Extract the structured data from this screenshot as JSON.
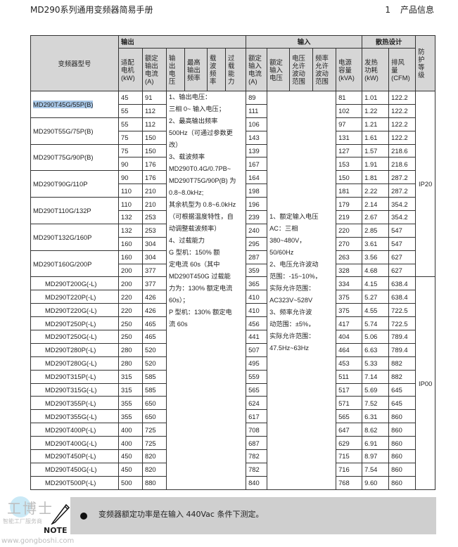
{
  "header": {
    "title": "MD290系列通用变频器简易手册",
    "section_no": "1",
    "section_title": "产品信息"
  },
  "table": {
    "col_model": "变频器型号",
    "group_output": "输出",
    "group_input": "输入",
    "group_cooling": "散热设计",
    "col_protection": [
      "防",
      "护",
      "等",
      "级"
    ],
    "cols": {
      "motor_kw": [
        "适配",
        "电机",
        "(kW)"
      ],
      "out_current": [
        "额定",
        "输出",
        "电流",
        "(A)"
      ],
      "out_voltage": [
        "输",
        "出",
        "电",
        "压"
      ],
      "max_freq": [
        "最高",
        "输出",
        "频率"
      ],
      "carrier": [
        "载",
        "波",
        "频",
        "率"
      ],
      "overload": [
        "过",
        "载",
        "能",
        "力"
      ],
      "in_current": [
        "额定",
        "输入",
        "电流",
        "(A)"
      ],
      "in_voltage": [
        "额定",
        "输入",
        "电压"
      ],
      "volt_range": [
        "电压",
        "允许",
        "波动",
        "范围"
      ],
      "freq_range": [
        "频率",
        "允许",
        "波动",
        "范围"
      ],
      "kva": [
        "电源",
        "容量",
        "(kVA)"
      ],
      "heat": [
        "发热",
        "功耗",
        "(kW)"
      ],
      "airflow": [
        "排风",
        "量",
        "(CFM)"
      ]
    },
    "output_notes": [
      "1、输出电压：",
      "三相 0~ 输入电压；",
      "2、最高输出频率",
      "500Hz（可通过参数更",
      "改）",
      "3、载波频率",
      "MD290T0.4G/0.7PB~",
      "MD290T75G/90P(B) 为",
      "0.8~8.0kHz;",
      "其余机型为 0.8~6.0kHz",
      "（可根据温度特性，自",
      "动调整载波频率）",
      "4、过载能力",
      "G 型机：150% 额",
      "定电流 60s（其中",
      "MD290T450G 过载能",
      "力为：130% 额定电流",
      "60s）；",
      "P 型机：130% 额定电",
      "流 60s"
    ],
    "input_notes": [
      "1、额定输入电压",
      "AC：三相",
      "380~480V，",
      "50/60Hz",
      "2、电压允许波动",
      "范围：-15~10%，",
      "实际允许范围：",
      "AC323V~528V",
      "3、频率允许波",
      "动范围：±5%，",
      "实际允许范围：",
      "47.5Hz~63Hz"
    ],
    "protection": [
      "IP20",
      "IP00"
    ],
    "dual_models": [
      {
        "model": "MD290T45G/55P(B)",
        "selected": true,
        "rows": [
          [
            "45",
            "91",
            "89",
            "81",
            "1.01",
            "122.2"
          ],
          [
            "55",
            "112",
            "111",
            "102",
            "1.22",
            "122.2"
          ]
        ]
      },
      {
        "model": "MD290T55G/75P(B)",
        "rows": [
          [
            "55",
            "112",
            "106",
            "97",
            "1.21",
            "122.2"
          ],
          [
            "75",
            "150",
            "143",
            "131",
            "1.61",
            "122.2"
          ]
        ]
      },
      {
        "model": "MD290T75G/90P(B)",
        "rows": [
          [
            "75",
            "150",
            "139",
            "127",
            "1.57",
            "218.6"
          ],
          [
            "90",
            "176",
            "167",
            "153",
            "1.91",
            "218.6"
          ]
        ]
      },
      {
        "model": "MD290T90G/110P",
        "rows": [
          [
            "90",
            "176",
            "164",
            "150",
            "1.81",
            "287.2"
          ],
          [
            "110",
            "210",
            "198",
            "181",
            "2.22",
            "287.2"
          ]
        ]
      },
      {
        "model": "MD290T110G/132P",
        "rows": [
          [
            "110",
            "210",
            "196",
            "179",
            "2.14",
            "354.2"
          ],
          [
            "132",
            "253",
            "239",
            "219",
            "2.67",
            "354.2"
          ]
        ]
      },
      {
        "model": "MD290T132G/160P",
        "rows": [
          [
            "132",
            "253",
            "240",
            "220",
            "2.85",
            "547"
          ],
          [
            "160",
            "304",
            "295",
            "270",
            "3.61",
            "547"
          ]
        ]
      },
      {
        "model": "MD290T160G/200P",
        "rows": [
          [
            "160",
            "304",
            "287",
            "263",
            "3.56",
            "627"
          ],
          [
            "200",
            "377",
            "359",
            "328",
            "4.68",
            "627"
          ]
        ]
      }
    ],
    "single_models": [
      [
        "MD290T200G(-L)",
        "200",
        "377",
        "365",
        "334",
        "4.15",
        "638.4"
      ],
      [
        "MD290T220P(-L)",
        "220",
        "426",
        "410",
        "375",
        "5.27",
        "638.4"
      ],
      [
        "MD290T220G(-L)",
        "220",
        "426",
        "410",
        "375",
        "4.55",
        "722.5"
      ],
      [
        "MD290T250P(-L)",
        "250",
        "465",
        "456",
        "417",
        "5.74",
        "722.5"
      ],
      [
        "MD290T250G(-L)",
        "250",
        "465",
        "441",
        "404",
        "5.06",
        "789.4"
      ],
      [
        "MD290T280P(-L)",
        "280",
        "520",
        "507",
        "464",
        "6.63",
        "789.4"
      ],
      [
        "MD290T280G(-L)",
        "280",
        "520",
        "495",
        "453",
        "5.33",
        "882"
      ],
      [
        "MD290T315P(-L)",
        "315",
        "585",
        "559",
        "511",
        "7.14",
        "882"
      ],
      [
        "MD290T315G(-L)",
        "315",
        "585",
        "565",
        "517",
        "5.69",
        "645"
      ],
      [
        "MD290T355P(-L)",
        "355",
        "650",
        "624",
        "571",
        "7.52",
        "645"
      ],
      [
        "MD290T355G(-L)",
        "355",
        "650",
        "617",
        "565",
        "6.31",
        "860"
      ],
      [
        "MD290T400P(-L)",
        "400",
        "725",
        "708",
        "647",
        "8.62",
        "860"
      ],
      [
        "MD290T400G(-L)",
        "400",
        "725",
        "687",
        "629",
        "6.91",
        "860"
      ],
      [
        "MD290T450P(-L)",
        "450",
        "820",
        "782",
        "715",
        "8.97",
        "860"
      ],
      [
        "MD290T450G(-L)",
        "450",
        "820",
        "782",
        "716",
        "7.54",
        "860"
      ],
      [
        "MD290T500P(-L)",
        "500",
        "880",
        "840",
        "768",
        "9.60",
        "860"
      ]
    ]
  },
  "note": {
    "label": "NOTE",
    "text": "变频器额定功率是在输入 440Vac 条件下测定。",
    "icon": "pencil-icon"
  },
  "watermark": {
    "brand": "工博士",
    "subtitle": "智能工厂服务商",
    "url": "www.gongboshi.com"
  },
  "colors": {
    "header_bg": "#d6d6d6",
    "selection": "#a9c8e8",
    "note_bg": "#cfcfcf"
  }
}
